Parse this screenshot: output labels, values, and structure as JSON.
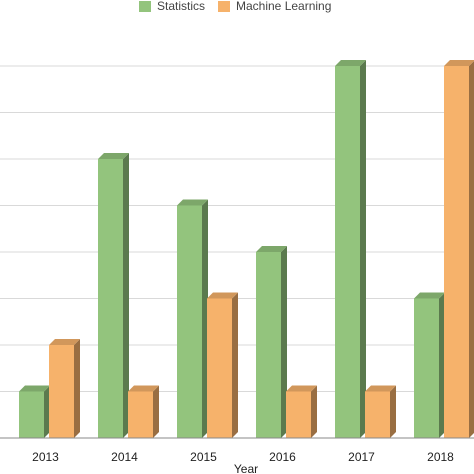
{
  "chart_data": {
    "type": "bar",
    "style": "3d",
    "xlabel": "Year",
    "ylabel": "",
    "categories": [
      "2013",
      "2014",
      "2015",
      "2016",
      "2017",
      "2018"
    ],
    "series": [
      {
        "name": "Statistics",
        "color": "#93c47d",
        "values": [
          1,
          6,
          5,
          4,
          8,
          3
        ]
      },
      {
        "name": "Machine Learning",
        "color": "#f6b26b",
        "values": [
          2,
          1,
          3,
          1,
          1,
          8
        ]
      }
    ],
    "ylim": [
      0,
      8
    ],
    "grid": true,
    "legend": "top-center"
  }
}
